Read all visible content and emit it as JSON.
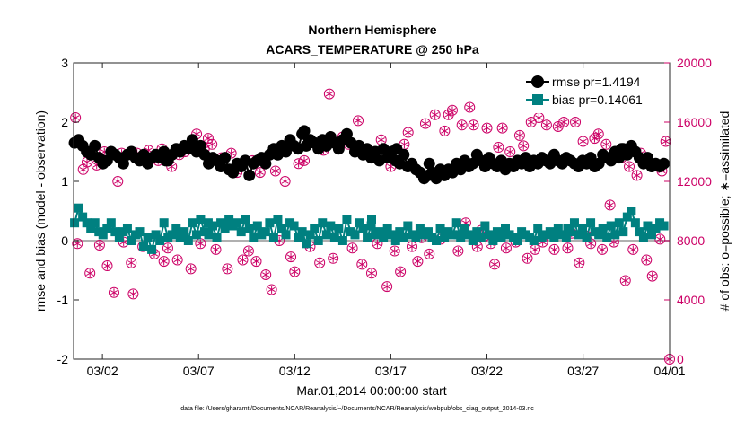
{
  "chart_data": {
    "type": "line",
    "title": "Northern Hemisphere",
    "subtitle": "ACARS_TEMPERATURE @ 250 hPa",
    "xlabel": "Mar.01,2014 00:00:00 start",
    "ylabel_left": "rmse and bias (model - observation)",
    "ylabel_right": "# of obs: o=possible; ∗=assimilated",
    "footer": "data file: /Users/gharamti/Documents/NCAR/Reanalysis/~/Documents/NCAR/Reanalysis/webpub/obs_diag_output_2014-03.nc",
    "xlim": [
      0.5,
      31.5
    ],
    "ylim_left": [
      -2,
      3
    ],
    "ylim_right": [
      0,
      20000
    ],
    "x_tick_values": [
      2,
      7,
      12,
      17,
      22,
      27,
      32
    ],
    "x_tick_labels": [
      "03/02",
      "03/07",
      "03/12",
      "03/17",
      "03/22",
      "03/27",
      "04/01"
    ],
    "y_left_ticks": [
      "-2",
      "-1",
      "0",
      "1",
      "2",
      "3"
    ],
    "y_right_ticks": [
      "0",
      "4000",
      "8000",
      "12000",
      "16000",
      "20000"
    ],
    "zero_line": 0,
    "colors": {
      "rmse": "#000000",
      "bias": "#008080",
      "obs": "#cc0066",
      "zero": "#b0b0b0"
    },
    "series": [
      {
        "name": "rmse",
        "legend": "rmse pr=1.4194",
        "values": [
          1.65,
          1.7,
          1.6,
          1.5,
          1.45,
          1.6,
          1.4,
          1.3,
          1.35,
          1.5,
          1.45,
          1.4,
          1.3,
          1.45,
          1.5,
          1.4,
          1.35,
          1.45,
          1.3,
          1.4,
          1.45,
          1.4,
          1.5,
          1.35,
          1.45,
          1.55,
          1.5,
          1.6,
          1.55,
          1.7,
          1.5,
          1.6,
          1.45,
          1.3,
          1.4,
          1.35,
          1.25,
          1.4,
          1.2,
          1.15,
          1.3,
          1.25,
          1.35,
          1.1,
          1.3,
          1.35,
          1.4,
          1.3,
          1.45,
          1.55,
          1.45,
          1.6,
          1.5,
          1.7,
          1.6,
          1.55,
          1.8,
          1.6,
          1.7,
          1.65,
          1.55,
          1.7,
          1.6,
          1.75,
          1.65,
          1.55,
          1.7,
          1.8,
          1.65,
          1.5,
          1.6,
          1.45,
          1.55,
          1.4,
          1.5,
          1.35,
          1.55,
          1.4,
          1.5,
          1.35,
          1.3,
          1.45,
          1.25,
          1.3,
          1.2,
          1.15,
          1.05,
          1.1,
          1.15,
          1.05,
          1.2,
          1.1,
          1.2,
          1.15,
          1.3,
          1.2,
          1.35,
          1.25,
          1.3,
          1.45,
          1.35,
          1.25,
          1.4,
          1.3,
          1.25,
          1.35,
          1.2,
          1.3,
          1.25,
          1.35,
          1.3,
          1.4,
          1.25,
          1.35,
          1.3,
          1.4,
          1.35,
          1.3,
          1.45,
          1.35,
          1.3,
          1.4,
          1.35,
          1.3,
          1.25,
          1.35,
          1.3,
          1.4,
          1.25,
          1.3,
          1.45,
          1.4,
          1.35,
          1.5,
          1.4,
          1.55,
          1.45,
          1.6,
          1.5,
          1.4,
          1.3,
          1.4,
          1.25,
          1.3,
          1.25,
          1.3
        ],
        "extra_points": [
          {
            "x": 5.3,
            "y": 1.35
          },
          {
            "x": 6.8,
            "y": 1.6
          },
          {
            "x": 12.5,
            "y": 1.85
          },
          {
            "x": 14.3,
            "y": 1.6
          },
          {
            "x": 17.3,
            "y": 1.55
          },
          {
            "x": 19.0,
            "y": 1.3
          },
          {
            "x": 29.0,
            "y": 1.55
          }
        ]
      },
      {
        "name": "bias",
        "legend": "bias pr=0.14061",
        "values": [
          0.3,
          0.55,
          0.4,
          0.3,
          0.2,
          0.3,
          0.15,
          0.1,
          0.2,
          0.3,
          0.15,
          0.05,
          0.15,
          0.2,
          0.0,
          0.1,
          0.15,
          -0.1,
          0.05,
          -0.15,
          0.1,
          0.0,
          0.3,
          0.05,
          0.1,
          0.2,
          0.05,
          0.15,
          0.0,
          0.3,
          0.1,
          0.35,
          0.15,
          0.1,
          0.25,
          0.05,
          0.3,
          0.2,
          0.35,
          0.25,
          0.3,
          0.15,
          0.35,
          0.2,
          0.05,
          0.25,
          0.1,
          0.15,
          0.3,
          0.05,
          0.35,
          0.2,
          0.1,
          0.3,
          0.25,
          0.05,
          0.15,
          -0.05,
          0.1,
          0.2,
          0.0,
          0.3,
          0.1,
          0.25,
          0.05,
          0.2,
          0.0,
          0.35,
          0.15,
          0.1,
          0.3,
          0.2,
          0.05,
          0.25,
          0.1,
          0.15,
          0.05,
          0.2,
          0.1,
          0.0,
          0.15,
          0.05,
          0.25,
          0.1,
          0.05,
          0.2,
          0.1,
          0.15,
          0.05,
          0.0,
          0.2,
          0.05,
          0.15,
          0.1,
          0.3,
          0.05,
          0.2,
          0.1,
          0.0,
          0.15,
          0.05,
          0.25,
          0.1,
          0.0,
          0.15,
          0.05,
          0.2,
          0.1,
          0.05,
          0.0,
          0.15,
          0.1,
          0.05,
          0.0,
          0.2,
          0.05,
          0.1,
          0.15,
          0.05,
          0.2,
          0.1,
          0.05,
          0.15,
          0.3,
          0.1,
          0.2,
          0.05,
          0.3,
          0.15,
          0.1,
          0.2,
          0.05,
          0.25,
          0.1,
          0.3,
          0.15,
          0.4,
          0.5,
          0.3,
          0.15,
          0.05,
          0.25,
          0.1,
          0.2,
          0.3,
          0.25
        ],
        "extra_points": [
          {
            "x": 7.5,
            "y": 0.3
          },
          {
            "x": 12.3,
            "y": 0.05
          },
          {
            "x": 16.0,
            "y": 0.35
          },
          {
            "x": 20.5,
            "y": 0.1
          },
          {
            "x": 26.2,
            "y": 0.2
          }
        ]
      }
    ],
    "obs_points": [
      {
        "x": 0.6,
        "y": 16300
      },
      {
        "x": 0.7,
        "y": 7800
      },
      {
        "x": 1.0,
        "y": 12800
      },
      {
        "x": 1.2,
        "y": 13300
      },
      {
        "x": 1.35,
        "y": 5800
      },
      {
        "x": 1.7,
        "y": 13100
      },
      {
        "x": 1.85,
        "y": 7700
      },
      {
        "x": 2.1,
        "y": 14000
      },
      {
        "x": 2.25,
        "y": 6300
      },
      {
        "x": 2.6,
        "y": 4500
      },
      {
        "x": 2.8,
        "y": 12000
      },
      {
        "x": 3.0,
        "y": 13900
      },
      {
        "x": 3.1,
        "y": 7900
      },
      {
        "x": 3.5,
        "y": 6500
      },
      {
        "x": 3.6,
        "y": 4400
      },
      {
        "x": 3.8,
        "y": 13900
      },
      {
        "x": 4.1,
        "y": 7600
      },
      {
        "x": 4.4,
        "y": 14100
      },
      {
        "x": 4.7,
        "y": 7100
      },
      {
        "x": 4.9,
        "y": 13400
      },
      {
        "x": 5.1,
        "y": 14200
      },
      {
        "x": 5.2,
        "y": 6600
      },
      {
        "x": 5.4,
        "y": 7500
      },
      {
        "x": 5.6,
        "y": 13000
      },
      {
        "x": 5.9,
        "y": 6700
      },
      {
        "x": 6.0,
        "y": 13800
      },
      {
        "x": 6.3,
        "y": 14000
      },
      {
        "x": 6.6,
        "y": 6100
      },
      {
        "x": 6.9,
        "y": 15200
      },
      {
        "x": 7.1,
        "y": 7800
      },
      {
        "x": 7.3,
        "y": 14200
      },
      {
        "x": 7.5,
        "y": 14900
      },
      {
        "x": 7.7,
        "y": 14500
      },
      {
        "x": 7.9,
        "y": 7400
      },
      {
        "x": 8.2,
        "y": 13600
      },
      {
        "x": 8.5,
        "y": 6100
      },
      {
        "x": 8.7,
        "y": 13900
      },
      {
        "x": 9.0,
        "y": 12600
      },
      {
        "x": 9.3,
        "y": 6700
      },
      {
        "x": 9.6,
        "y": 7300
      },
      {
        "x": 9.8,
        "y": 13400
      },
      {
        "x": 10.0,
        "y": 6600
      },
      {
        "x": 10.2,
        "y": 12600
      },
      {
        "x": 10.5,
        "y": 5700
      },
      {
        "x": 10.8,
        "y": 4700
      },
      {
        "x": 11.0,
        "y": 12700
      },
      {
        "x": 11.2,
        "y": 8000
      },
      {
        "x": 11.5,
        "y": 12000
      },
      {
        "x": 11.8,
        "y": 6900
      },
      {
        "x": 12.0,
        "y": 5900
      },
      {
        "x": 12.2,
        "y": 13200
      },
      {
        "x": 12.5,
        "y": 13400
      },
      {
        "x": 12.8,
        "y": 7600
      },
      {
        "x": 13.0,
        "y": 14600
      },
      {
        "x": 13.3,
        "y": 6500
      },
      {
        "x": 13.5,
        "y": 14100
      },
      {
        "x": 13.8,
        "y": 17900
      },
      {
        "x": 14.0,
        "y": 6800
      },
      {
        "x": 14.2,
        "y": 14600
      },
      {
        "x": 14.5,
        "y": 15000
      },
      {
        "x": 14.8,
        "y": 14500
      },
      {
        "x": 15.0,
        "y": 7500
      },
      {
        "x": 15.3,
        "y": 16100
      },
      {
        "x": 15.5,
        "y": 6400
      },
      {
        "x": 15.8,
        "y": 14200
      },
      {
        "x": 16.0,
        "y": 5800
      },
      {
        "x": 16.3,
        "y": 7800
      },
      {
        "x": 16.5,
        "y": 14800
      },
      {
        "x": 16.8,
        "y": 4900
      },
      {
        "x": 17.0,
        "y": 13000
      },
      {
        "x": 17.2,
        "y": 7300
      },
      {
        "x": 17.5,
        "y": 5900
      },
      {
        "x": 17.7,
        "y": 14500
      },
      {
        "x": 17.9,
        "y": 15300
      },
      {
        "x": 18.1,
        "y": 7600
      },
      {
        "x": 18.4,
        "y": 6600
      },
      {
        "x": 18.6,
        "y": 8200
      },
      {
        "x": 18.8,
        "y": 15900
      },
      {
        "x": 19.0,
        "y": 7100
      },
      {
        "x": 19.3,
        "y": 16500
      },
      {
        "x": 19.6,
        "y": 8100
      },
      {
        "x": 19.8,
        "y": 15400
      },
      {
        "x": 20.0,
        "y": 16500
      },
      {
        "x": 20.2,
        "y": 16800
      },
      {
        "x": 20.5,
        "y": 7300
      },
      {
        "x": 20.7,
        "y": 15800
      },
      {
        "x": 20.9,
        "y": 9200
      },
      {
        "x": 21.1,
        "y": 17000
      },
      {
        "x": 21.3,
        "y": 15800
      },
      {
        "x": 21.5,
        "y": 7600
      },
      {
        "x": 21.7,
        "y": 8700
      },
      {
        "x": 22.0,
        "y": 15600
      },
      {
        "x": 22.2,
        "y": 7800
      },
      {
        "x": 22.4,
        "y": 6400
      },
      {
        "x": 22.6,
        "y": 14300
      },
      {
        "x": 22.8,
        "y": 15600
      },
      {
        "x": 23.0,
        "y": 7500
      },
      {
        "x": 23.2,
        "y": 14000
      },
      {
        "x": 23.5,
        "y": 7900
      },
      {
        "x": 23.7,
        "y": 15100
      },
      {
        "x": 23.9,
        "y": 14400
      },
      {
        "x": 24.1,
        "y": 6800
      },
      {
        "x": 24.3,
        "y": 16000
      },
      {
        "x": 24.5,
        "y": 7400
      },
      {
        "x": 24.7,
        "y": 16300
      },
      {
        "x": 24.9,
        "y": 7900
      },
      {
        "x": 25.1,
        "y": 15800
      },
      {
        "x": 25.3,
        "y": 17000
      },
      {
        "x": 25.5,
        "y": 7400
      },
      {
        "x": 25.7,
        "y": 15700
      },
      {
        "x": 26.0,
        "y": 16000
      },
      {
        "x": 26.2,
        "y": 7500
      },
      {
        "x": 26.4,
        "y": 8500
      },
      {
        "x": 26.6,
        "y": 16000
      },
      {
        "x": 26.8,
        "y": 6500
      },
      {
        "x": 27.0,
        "y": 14700
      },
      {
        "x": 27.2,
        "y": 8300
      },
      {
        "x": 27.4,
        "y": 7800
      },
      {
        "x": 27.6,
        "y": 14900
      },
      {
        "x": 27.8,
        "y": 15200
      },
      {
        "x": 28.0,
        "y": 7400
      },
      {
        "x": 28.2,
        "y": 14500
      },
      {
        "x": 28.4,
        "y": 10400
      },
      {
        "x": 28.6,
        "y": 7900
      },
      {
        "x": 28.8,
        "y": 13800
      },
      {
        "x": 29.0,
        "y": 13600
      },
      {
        "x": 29.2,
        "y": 5300
      },
      {
        "x": 29.4,
        "y": 13000
      },
      {
        "x": 29.6,
        "y": 7400
      },
      {
        "x": 29.8,
        "y": 12400
      },
      {
        "x": 30.0,
        "y": 13900
      },
      {
        "x": 30.3,
        "y": 6700
      },
      {
        "x": 30.6,
        "y": 5600
      },
      {
        "x": 31.0,
        "y": 8100
      },
      {
        "x": 31.1,
        "y": 12700
      },
      {
        "x": 31.3,
        "y": 14700
      },
      {
        "x": 31.5,
        "y": 0
      }
    ]
  }
}
